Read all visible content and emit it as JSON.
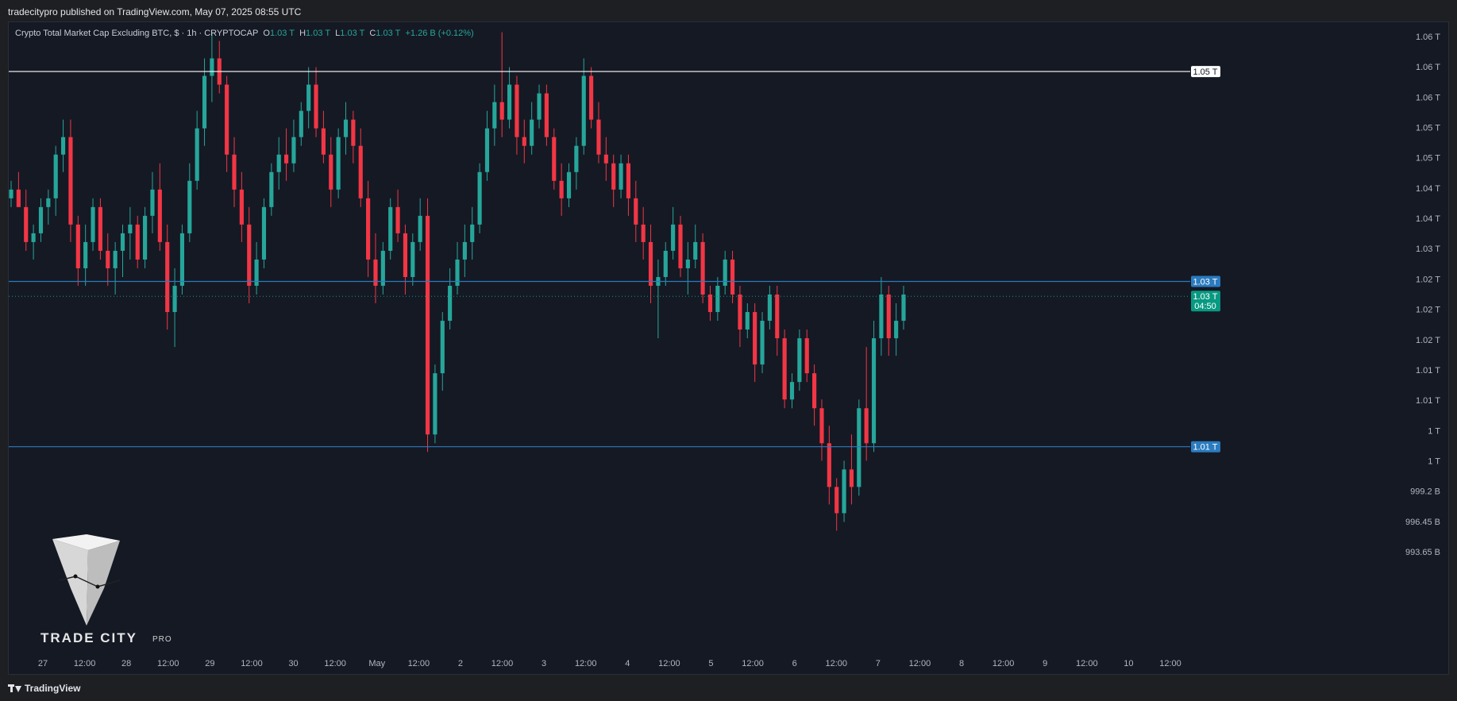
{
  "header": {
    "publish_text": "tradecitypro published on TradingView.com, May 07, 2025 08:55 UTC"
  },
  "legend": {
    "title": "Crypto Total Market Cap Excluding BTC, $ · 1h · CRYPTOCAP",
    "open_label": "O",
    "open_value": "1.03 T",
    "high_label": "H",
    "high_value": "1.03 T",
    "low_label": "L",
    "low_value": "1.03 T",
    "close_label": "C",
    "close_value": "1.03 T",
    "change": "+1.26 B (+0.12%)"
  },
  "footer": {
    "brand": "TradingView"
  },
  "watermark": {
    "name": "TRADE CITY",
    "suffix": "PRO"
  },
  "colors": {
    "up": "#26a69a",
    "down": "#f23645",
    "white_line": "#ffffff",
    "blue_line": "#2a7bbf",
    "price_tag": "#089981"
  },
  "chart_data": {
    "type": "candlestick",
    "title": "Crypto Total Market Cap Excluding BTC, $ · 1h · CRYPTOCAP",
    "unit": "T",
    "y_axis_labels": [
      "1.06 T",
      "1.06 T",
      "1.06 T",
      "1.05 T",
      "1.05 T",
      "1.04 T",
      "1.04 T",
      "1.03 T",
      "1.02 T",
      "1.02 T",
      "1.02 T",
      "1.01 T",
      "1.01 T",
      "1 T",
      "1 T",
      "999.2 B",
      "996.45 B",
      "993.65 B"
    ],
    "x_axis_labels": [
      "27",
      "12:00",
      "28",
      "12:00",
      "29",
      "12:00",
      "30",
      "12:00",
      "May",
      "12:00",
      "2",
      "12:00",
      "3",
      "12:00",
      "4",
      "12:00",
      "5",
      "12:00",
      "6",
      "12:00",
      "7",
      "12:00",
      "8",
      "12:00",
      "9",
      "12:00",
      "10",
      "12:00"
    ],
    "horizontal_levels": [
      {
        "price": 1.0535,
        "color": "white",
        "label": "1.05 T"
      },
      {
        "price": 1.0295,
        "color": "blue",
        "label": "1.03 T"
      },
      {
        "price": 1.0106,
        "color": "blue",
        "label": "1.01 T"
      }
    ],
    "last_price": {
      "price": 1.0278,
      "label": "1.03 T",
      "countdown": "04:50"
    },
    "candles_ohlc": [
      [
        1.039,
        1.041,
        1.038,
        1.04
      ],
      [
        1.04,
        1.042,
        1.038,
        1.038
      ],
      [
        1.038,
        1.04,
        1.033,
        1.034
      ],
      [
        1.034,
        1.036,
        1.032,
        1.035
      ],
      [
        1.035,
        1.039,
        1.034,
        1.038
      ],
      [
        1.038,
        1.04,
        1.036,
        1.039
      ],
      [
        1.039,
        1.045,
        1.037,
        1.044
      ],
      [
        1.044,
        1.048,
        1.042,
        1.046
      ],
      [
        1.046,
        1.048,
        1.034,
        1.036
      ],
      [
        1.036,
        1.037,
        1.029,
        1.031
      ],
      [
        1.031,
        1.036,
        1.029,
        1.034
      ],
      [
        1.034,
        1.039,
        1.033,
        1.038
      ],
      [
        1.038,
        1.039,
        1.032,
        1.033
      ],
      [
        1.033,
        1.035,
        1.029,
        1.031
      ],
      [
        1.031,
        1.034,
        1.028,
        1.033
      ],
      [
        1.033,
        1.036,
        1.03,
        1.035
      ],
      [
        1.035,
        1.038,
        1.032,
        1.036
      ],
      [
        1.036,
        1.037,
        1.031,
        1.032
      ],
      [
        1.032,
        1.038,
        1.031,
        1.037
      ],
      [
        1.037,
        1.042,
        1.035,
        1.04
      ],
      [
        1.04,
        1.043,
        1.033,
        1.034
      ],
      [
        1.034,
        1.036,
        1.024,
        1.026
      ],
      [
        1.026,
        1.031,
        1.022,
        1.029
      ],
      [
        1.029,
        1.036,
        1.028,
        1.035
      ],
      [
        1.035,
        1.043,
        1.034,
        1.041
      ],
      [
        1.041,
        1.049,
        1.04,
        1.047
      ],
      [
        1.047,
        1.055,
        1.045,
        1.053
      ],
      [
        1.053,
        1.058,
        1.05,
        1.055
      ],
      [
        1.055,
        1.057,
        1.051,
        1.052
      ],
      [
        1.052,
        1.053,
        1.042,
        1.044
      ],
      [
        1.044,
        1.046,
        1.038,
        1.04
      ],
      [
        1.04,
        1.042,
        1.034,
        1.036
      ],
      [
        1.036,
        1.038,
        1.027,
        1.029
      ],
      [
        1.029,
        1.034,
        1.028,
        1.032
      ],
      [
        1.032,
        1.039,
        1.031,
        1.038
      ],
      [
        1.038,
        1.043,
        1.037,
        1.042
      ],
      [
        1.042,
        1.046,
        1.04,
        1.044
      ],
      [
        1.044,
        1.047,
        1.041,
        1.043
      ],
      [
        1.043,
        1.048,
        1.042,
        1.046
      ],
      [
        1.046,
        1.05,
        1.045,
        1.049
      ],
      [
        1.049,
        1.054,
        1.047,
        1.052
      ],
      [
        1.052,
        1.054,
        1.046,
        1.047
      ],
      [
        1.047,
        1.049,
        1.043,
        1.044
      ],
      [
        1.044,
        1.046,
        1.038,
        1.04
      ],
      [
        1.04,
        1.047,
        1.039,
        1.046
      ],
      [
        1.046,
        1.05,
        1.044,
        1.048
      ],
      [
        1.048,
        1.049,
        1.043,
        1.045
      ],
      [
        1.045,
        1.047,
        1.038,
        1.039
      ],
      [
        1.039,
        1.041,
        1.03,
        1.032
      ],
      [
        1.032,
        1.035,
        1.027,
        1.029
      ],
      [
        1.029,
        1.034,
        1.028,
        1.033
      ],
      [
        1.033,
        1.039,
        1.032,
        1.038
      ],
      [
        1.038,
        1.04,
        1.034,
        1.035
      ],
      [
        1.035,
        1.036,
        1.028,
        1.03
      ],
      [
        1.03,
        1.035,
        1.029,
        1.034
      ],
      [
        1.034,
        1.039,
        1.033,
        1.037
      ],
      [
        1.037,
        1.039,
        1.01,
        1.012
      ],
      [
        1.012,
        1.02,
        1.011,
        1.019
      ],
      [
        1.019,
        1.026,
        1.017,
        1.025
      ],
      [
        1.025,
        1.031,
        1.024,
        1.029
      ],
      [
        1.029,
        1.034,
        1.028,
        1.032
      ],
      [
        1.032,
        1.036,
        1.03,
        1.034
      ],
      [
        1.034,
        1.038,
        1.032,
        1.036
      ],
      [
        1.036,
        1.043,
        1.035,
        1.042
      ],
      [
        1.042,
        1.049,
        1.041,
        1.047
      ],
      [
        1.047,
        1.052,
        1.045,
        1.05
      ],
      [
        1.05,
        1.058,
        1.046,
        1.048
      ],
      [
        1.048,
        1.054,
        1.047,
        1.052
      ],
      [
        1.052,
        1.053,
        1.044,
        1.046
      ],
      [
        1.046,
        1.048,
        1.043,
        1.045
      ],
      [
        1.045,
        1.05,
        1.044,
        1.048
      ],
      [
        1.048,
        1.052,
        1.047,
        1.051
      ],
      [
        1.051,
        1.052,
        1.045,
        1.046
      ],
      [
        1.046,
        1.047,
        1.04,
        1.041
      ],
      [
        1.041,
        1.043,
        1.037,
        1.039
      ],
      [
        1.039,
        1.043,
        1.038,
        1.042
      ],
      [
        1.042,
        1.046,
        1.04,
        1.045
      ],
      [
        1.045,
        1.055,
        1.044,
        1.053
      ],
      [
        1.053,
        1.054,
        1.047,
        1.048
      ],
      [
        1.048,
        1.05,
        1.043,
        1.044
      ],
      [
        1.044,
        1.046,
        1.041,
        1.043
      ],
      [
        1.043,
        1.044,
        1.038,
        1.04
      ],
      [
        1.04,
        1.044,
        1.039,
        1.043
      ],
      [
        1.043,
        1.044,
        1.037,
        1.039
      ],
      [
        1.039,
        1.041,
        1.034,
        1.036
      ],
      [
        1.036,
        1.038,
        1.032,
        1.034
      ],
      [
        1.034,
        1.036,
        1.027,
        1.029
      ],
      [
        1.029,
        1.032,
        1.023,
        1.03
      ],
      [
        1.03,
        1.034,
        1.029,
        1.033
      ],
      [
        1.033,
        1.038,
        1.032,
        1.036
      ],
      [
        1.036,
        1.037,
        1.03,
        1.031
      ],
      [
        1.031,
        1.034,
        1.028,
        1.032
      ],
      [
        1.032,
        1.036,
        1.031,
        1.034
      ],
      [
        1.034,
        1.035,
        1.027,
        1.028
      ],
      [
        1.028,
        1.029,
        1.025,
        1.026
      ],
      [
        1.026,
        1.03,
        1.025,
        1.029
      ],
      [
        1.029,
        1.033,
        1.028,
        1.032
      ],
      [
        1.032,
        1.033,
        1.027,
        1.028
      ],
      [
        1.028,
        1.029,
        1.022,
        1.024
      ],
      [
        1.024,
        1.027,
        1.023,
        1.026
      ],
      [
        1.026,
        1.027,
        1.018,
        1.02
      ],
      [
        1.02,
        1.026,
        1.019,
        1.025
      ],
      [
        1.025,
        1.029,
        1.024,
        1.028
      ],
      [
        1.028,
        1.029,
        1.021,
        1.023
      ],
      [
        1.023,
        1.024,
        1.015,
        1.016
      ],
      [
        1.016,
        1.019,
        1.015,
        1.018
      ],
      [
        1.018,
        1.024,
        1.017,
        1.023
      ],
      [
        1.023,
        1.024,
        1.018,
        1.019
      ],
      [
        1.019,
        1.02,
        1.013,
        1.015
      ],
      [
        1.015,
        1.016,
        1.009,
        1.011
      ],
      [
        1.011,
        1.013,
        1.004,
        1.006
      ],
      [
        1.006,
        1.007,
        1.001,
        1.003
      ],
      [
        1.003,
        1.009,
        1.002,
        1.008
      ],
      [
        1.008,
        1.012,
        1.004,
        1.006
      ],
      [
        1.006,
        1.016,
        1.005,
        1.015
      ],
      [
        1.015,
        1.022,
        1.009,
        1.011
      ],
      [
        1.011,
        1.025,
        1.01,
        1.023
      ],
      [
        1.023,
        1.03,
        1.021,
        1.028
      ],
      [
        1.028,
        1.029,
        1.021,
        1.023
      ],
      [
        1.023,
        1.027,
        1.021,
        1.025
      ],
      [
        1.025,
        1.029,
        1.024,
        1.028
      ]
    ]
  }
}
